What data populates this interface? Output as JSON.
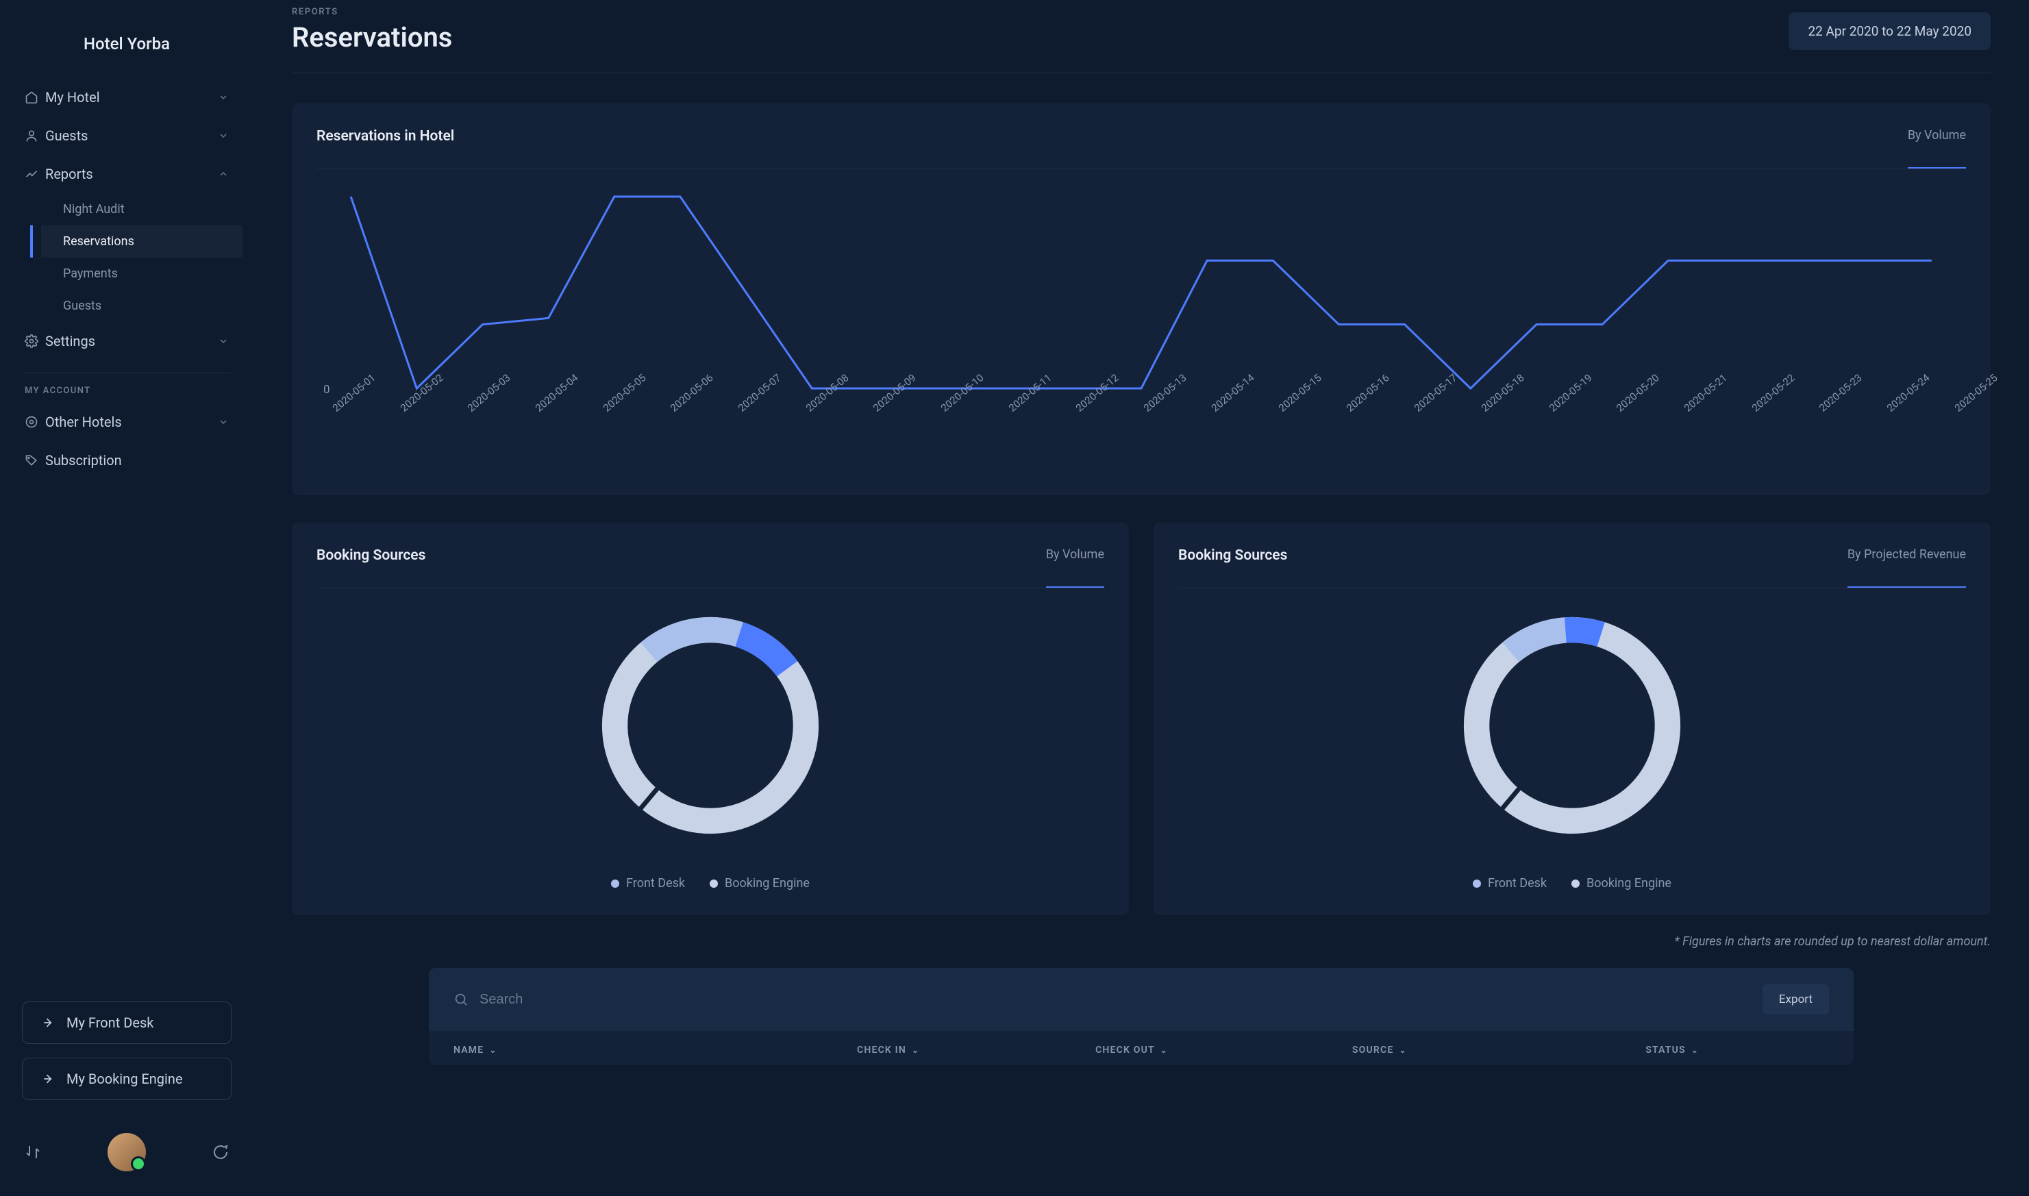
{
  "hotel_name": "Hotel Yorba",
  "sidebar": {
    "items": [
      {
        "label": "My Hotel",
        "icon": "home",
        "expandable": true
      },
      {
        "label": "Guests",
        "icon": "user",
        "expandable": true
      },
      {
        "label": "Reports",
        "icon": "chart",
        "expandable": true,
        "open": true,
        "children": [
          {
            "label": "Night Audit",
            "active": false
          },
          {
            "label": "Reservations",
            "active": true
          },
          {
            "label": "Payments",
            "active": false
          },
          {
            "label": "Guests",
            "active": false
          }
        ]
      },
      {
        "label": "Settings",
        "icon": "gear",
        "expandable": true
      }
    ],
    "account_label": "MY ACCOUNT",
    "account_items": [
      {
        "label": "Other Hotels",
        "icon": "gear",
        "expandable": true
      },
      {
        "label": "Subscription",
        "icon": "tag",
        "expandable": false
      }
    ],
    "bottom_buttons": [
      {
        "label": "My Front Desk"
      },
      {
        "label": "My Booking Engine"
      }
    ]
  },
  "header": {
    "breadcrumb": "REPORTS",
    "title": "Reservations",
    "date_range": "22 Apr 2020 to 22 May 2020"
  },
  "line_chart": {
    "title": "Reservations in Hotel",
    "subtitle": "By Volume",
    "type": "line",
    "y_zero_label": "0",
    "ylim": [
      0,
      3
    ],
    "line_color": "#4d7cff",
    "line_width": 3,
    "background_color": "#142239",
    "categories": [
      "2020-05-01",
      "2020-05-02",
      "2020-05-03",
      "2020-05-04",
      "2020-05-05",
      "2020-05-06",
      "2020-05-07",
      "2020-05-08",
      "2020-05-09",
      "2020-05-10",
      "2020-05-11",
      "2020-05-12",
      "2020-05-13",
      "2020-05-14",
      "2020-05-15",
      "2020-05-16",
      "2020-05-17",
      "2020-05-18",
      "2020-05-19",
      "2020-05-20",
      "2020-05-21",
      "2020-05-22",
      "2020-05-23",
      "2020-05-24",
      "2020-05-25"
    ],
    "values": [
      3,
      0,
      1,
      1.1,
      3,
      3,
      1.5,
      0,
      0,
      0,
      0,
      0,
      0,
      2,
      2,
      1,
      1,
      0,
      1,
      1,
      2,
      2,
      2,
      2,
      2
    ]
  },
  "donut_left": {
    "title": "Booking Sources",
    "subtitle": "By Volume",
    "type": "donut",
    "ring_width": 22,
    "bg_ring_color": "#c8d3e8",
    "segments": [
      {
        "label": "Front Desk",
        "value": 16,
        "color": "#a9c0ec"
      },
      {
        "label": "Booking Engine",
        "value": 10,
        "color": "#4d7cff"
      }
    ],
    "remainder": 74,
    "legend_dot_colors": {
      "front_desk": "#a9c0ec",
      "booking_engine": "#c8d3e8"
    }
  },
  "donut_right": {
    "title": "Booking Sources",
    "subtitle": "By Projected Revenue",
    "type": "donut",
    "ring_width": 22,
    "bg_ring_color": "#c8d3e8",
    "segments": [
      {
        "label": "Front Desk",
        "value": 10,
        "color": "#a9c0ec"
      },
      {
        "label": "Booking Engine",
        "value": 6,
        "color": "#4d7cff"
      }
    ],
    "remainder": 84,
    "legend_dot_colors": {
      "front_desk": "#a9c0ec",
      "booking_engine": "#c8d3e8"
    }
  },
  "footnote": "* Figures in charts are rounded up to nearest dollar amount.",
  "table": {
    "search_placeholder": "Search",
    "export_label": "Export",
    "columns": [
      "NAME",
      "CHECK IN",
      "CHECK OUT",
      "SOURCE",
      "STATUS"
    ]
  }
}
